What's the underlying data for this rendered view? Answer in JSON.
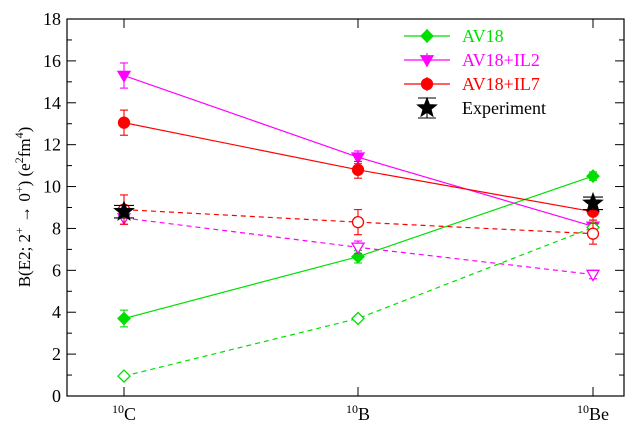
{
  "chart_data": {
    "type": "line",
    "title": "",
    "xlabel": "",
    "ylabel_parts": {
      "prefix": "B(E2; 2",
      "sup1": "+",
      "arrow": " → 0",
      "sup2": "+",
      "middle": ")  (e",
      "sup3": "2",
      "fm": "fm",
      "sup4": "4",
      "suffix": ")"
    },
    "categories": [
      {
        "mass": "10",
        "element": "C"
      },
      {
        "mass": "10",
        "element": "B"
      },
      {
        "mass": "10",
        "element": "Be"
      }
    ],
    "ylim": [
      0,
      18
    ],
    "yticks": [
      0,
      2,
      4,
      6,
      8,
      10,
      12,
      14,
      16,
      18
    ],
    "legend_position": "top-right",
    "series": [
      {
        "name": "AV18",
        "color": "#00e000",
        "marker": "diamond",
        "filled": true,
        "dashed": false,
        "values": [
          3.7,
          6.65,
          10.5
        ],
        "errors": [
          0.4,
          0.3,
          0.2
        ]
      },
      {
        "name": "AV18+IL2",
        "color": "#ff00ff",
        "marker": "triangle-down",
        "filled": true,
        "dashed": false,
        "values": [
          15.3,
          11.4,
          8.1
        ],
        "errors": [
          0.6,
          0.3,
          0.3
        ]
      },
      {
        "name": "AV18+IL7",
        "color": "#ff0000",
        "marker": "circle",
        "filled": true,
        "dashed": false,
        "values": [
          13.05,
          10.8,
          8.8
        ],
        "errors": [
          0.6,
          0.4,
          0.4
        ]
      },
      {
        "name": "",
        "color": "#00e000",
        "marker": "diamond",
        "filled": false,
        "dashed": true,
        "values": [
          0.95,
          3.7,
          8.05
        ],
        "errors": [
          0.1,
          0.1,
          0.2
        ]
      },
      {
        "name": "",
        "color": "#ff00ff",
        "marker": "triangle-down",
        "filled": false,
        "dashed": true,
        "values": [
          8.5,
          7.1,
          5.8
        ],
        "errors": [
          0.3,
          0.3,
          0.2
        ]
      },
      {
        "name": "",
        "color": "#ff0000",
        "marker": "circle",
        "filled": false,
        "dashed": true,
        "values": [
          8.9,
          8.3,
          7.75
        ],
        "errors": [
          0.7,
          0.6,
          0.5
        ]
      },
      {
        "name": "Experiment",
        "color": "#000000",
        "marker": "star",
        "filled": true,
        "dashed": false,
        "values": [
          8.8,
          null,
          9.2
        ],
        "errors": [
          0.3,
          null,
          0.3
        ]
      }
    ]
  }
}
